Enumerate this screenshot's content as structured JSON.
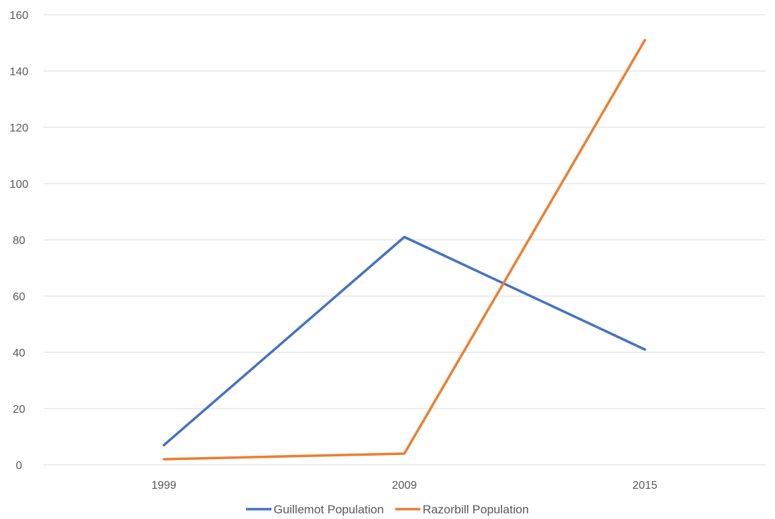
{
  "chart_data": {
    "type": "line",
    "title": "",
    "xlabel": "",
    "ylabel": "",
    "categories": [
      "1999",
      "2009",
      "2015"
    ],
    "ylim": [
      0,
      160
    ],
    "y_ticks": [
      0,
      20,
      40,
      60,
      80,
      100,
      120,
      140,
      160
    ],
    "grid": true,
    "legend": "bottom-center",
    "series": [
      {
        "name": "Guillemot Population",
        "color": "#4472c4",
        "values": [
          7,
          81,
          41
        ]
      },
      {
        "name": "Razorbill Population",
        "color": "#ed7d31",
        "values": [
          2,
          4,
          151
        ]
      }
    ]
  }
}
